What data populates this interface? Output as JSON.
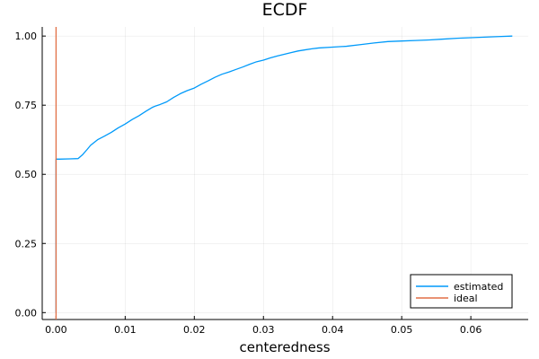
{
  "chart_data": {
    "type": "line",
    "title": "ECDF",
    "xlabel": "centeredness",
    "ylabel": "",
    "xlim": [
      -0.002,
      0.0683
    ],
    "ylim": [
      -0.025,
      1.033
    ],
    "xticks": [
      0.0,
      0.01,
      0.02,
      0.03,
      0.04,
      0.05,
      0.06
    ],
    "xtick_labels": [
      "0.00",
      "0.01",
      "0.02",
      "0.03",
      "0.04",
      "0.05",
      "0.06"
    ],
    "yticks": [
      0.0,
      0.25,
      0.5,
      0.75,
      1.0
    ],
    "ytick_labels": [
      "0.00",
      "0.25",
      "0.50",
      "0.75",
      "1.00"
    ],
    "grid": true,
    "legend_position": "bottom-right",
    "series": [
      {
        "name": "estimated",
        "color": "#009AFA",
        "x": [
          0.0,
          0.0,
          0.0005,
          0.002,
          0.0032,
          0.0038,
          0.0045,
          0.005,
          0.006,
          0.007,
          0.008,
          0.009,
          0.01,
          0.011,
          0.012,
          0.013,
          0.014,
          0.0145,
          0.015,
          0.016,
          0.017,
          0.018,
          0.019,
          0.02,
          0.021,
          0.022,
          0.023,
          0.024,
          0.025,
          0.026,
          0.027,
          0.028,
          0.029,
          0.03,
          0.031,
          0.032,
          0.033,
          0.034,
          0.035,
          0.036,
          0.037,
          0.038,
          0.04,
          0.042,
          0.044,
          0.046,
          0.048,
          0.05,
          0.052,
          0.054,
          0.056,
          0.058,
          0.06,
          0.062,
          0.064,
          0.066
        ],
        "y": [
          0.0,
          0.555,
          0.555,
          0.556,
          0.557,
          0.57,
          0.59,
          0.605,
          0.625,
          0.638,
          0.652,
          0.668,
          0.682,
          0.698,
          0.712,
          0.728,
          0.743,
          0.748,
          0.752,
          0.762,
          0.778,
          0.792,
          0.803,
          0.812,
          0.826,
          0.838,
          0.851,
          0.862,
          0.87,
          0.879,
          0.888,
          0.898,
          0.907,
          0.913,
          0.921,
          0.928,
          0.934,
          0.94,
          0.946,
          0.95,
          0.954,
          0.957,
          0.96,
          0.963,
          0.969,
          0.975,
          0.98,
          0.982,
          0.984,
          0.986,
          0.989,
          0.992,
          0.994,
          0.996,
          0.998,
          1.0
        ]
      },
      {
        "name": "ideal",
        "color": "#E26F46",
        "x": [
          0.0,
          0.0
        ],
        "y": [
          -0.025,
          1.033
        ]
      }
    ]
  }
}
